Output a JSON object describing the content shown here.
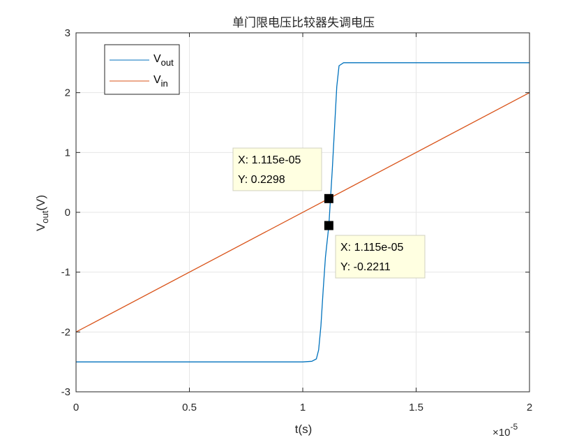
{
  "chart_data": {
    "type": "line",
    "title": "单门限电压比较器失调电压",
    "xlabel": "t(s)",
    "ylabel": {
      "main": "V",
      "sub": "out",
      "unit": "(V)"
    },
    "x_exponent_label": {
      "base": "×10",
      "exp": "-5"
    },
    "xlim": [
      0,
      2
    ],
    "ylim": [
      -3,
      3
    ],
    "x_ticks": [
      "0",
      "0.5",
      "1",
      "1.5",
      "2"
    ],
    "y_ticks": [
      "-3",
      "-2",
      "-1",
      "0",
      "1",
      "2",
      "3"
    ],
    "grid": true,
    "legend_position": "top-left",
    "series": [
      {
        "name": "V",
        "name_sub": "out",
        "color": "#0072BD",
        "x": [
          0,
          0.5,
          1.0,
          1.04,
          1.06,
          1.07,
          1.08,
          1.09,
          1.1,
          1.115,
          1.13,
          1.14,
          1.15,
          1.16,
          1.18,
          1.25,
          2.0
        ],
        "y": [
          -2.5,
          -2.5,
          -2.5,
          -2.49,
          -2.45,
          -2.3,
          -1.9,
          -1.3,
          -0.75,
          -0.2211,
          0.7,
          1.4,
          2.1,
          2.45,
          2.5,
          2.5,
          2.5
        ]
      },
      {
        "name": "V",
        "name_sub": "in",
        "color": "#D95319",
        "x": [
          0,
          2.0
        ],
        "y": [
          -2,
          2
        ]
      }
    ],
    "datatips": [
      {
        "x_text": "X: 1.115e-05",
        "y_text": "Y: 0.2298",
        "x": 1.115,
        "y": 0.2298
      },
      {
        "x_text": "X: 1.115e-05",
        "y_text": "Y: -0.2211",
        "x": 1.115,
        "y": -0.2211
      }
    ]
  }
}
